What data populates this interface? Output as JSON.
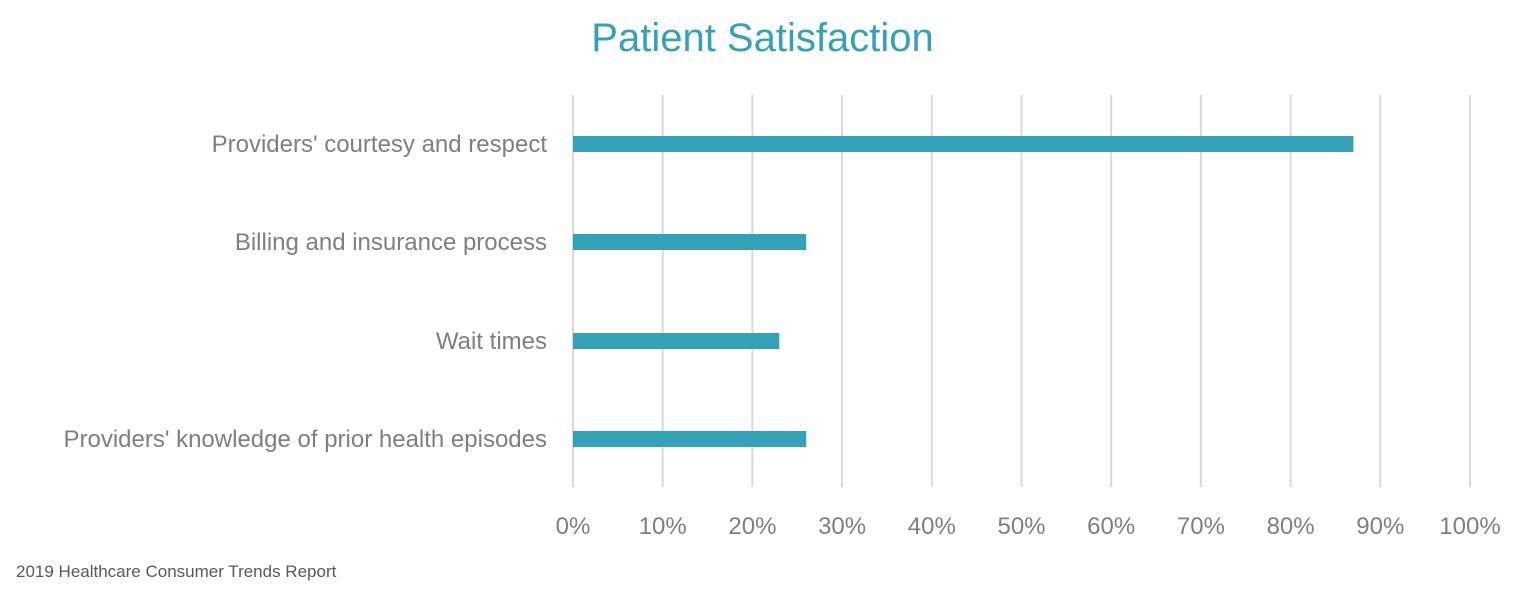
{
  "chart_data": {
    "type": "bar",
    "orientation": "horizontal",
    "title": "Patient Satisfaction",
    "categories": [
      "Providers' courtesy and respect",
      "Billing and insurance process",
      "Wait times",
      "Providers' knowledge of prior health episodes"
    ],
    "values": [
      87,
      26,
      23,
      26
    ],
    "xlim": [
      0,
      100
    ],
    "x_ticks": [
      "0%",
      "10%",
      "20%",
      "30%",
      "40%",
      "50%",
      "60%",
      "70%",
      "80%",
      "90%",
      "100%"
    ],
    "grid": true,
    "legend": "none",
    "bar_color": "#34a1b8",
    "grid_color": "#d9d9d9",
    "label_color": "#7f7f7f"
  },
  "footer": {
    "source": "2019 Healthcare Consumer Trends Report"
  }
}
